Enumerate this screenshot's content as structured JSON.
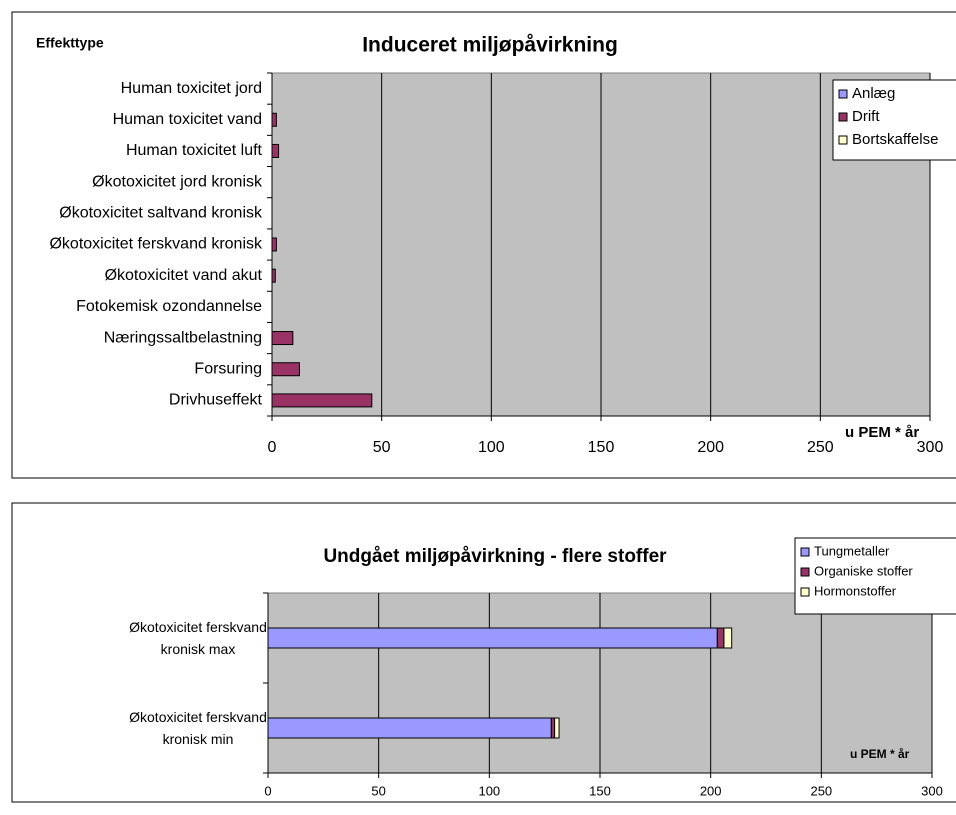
{
  "chart_data": [
    {
      "type": "stacked-bar",
      "orientation": "horizontal",
      "title": "Induceret miljøpåvirkning",
      "category_axis_label": "Effekttype",
      "annotation": "u PEM * år",
      "categories": [
        "Human toxicitet jord",
        "Human toxicitet vand",
        "Human toxicitet luft",
        "Økotoxicitet jord kronisk",
        "Økotoxicitet saltvand kronisk",
        "Økotoxicitet ferskvand kronisk",
        "Økotoxicitet vand akut",
        "Fotokemisk ozondannelse",
        "Næringssaltbelastning",
        "Forsuring",
        "Drivhuseffekt"
      ],
      "series": [
        {
          "name": "Anlæg",
          "color": "#9999ff",
          "values": [
            0,
            0,
            0,
            0,
            0,
            0,
            0,
            0,
            0,
            0,
            0
          ]
        },
        {
          "name": "Drift",
          "color": "#993366",
          "values": [
            0,
            2,
            3,
            0,
            0,
            2,
            1.5,
            0,
            9.5,
            12.5,
            45.5
          ]
        },
        {
          "name": "Bortskaffelse",
          "color": "#ffffcc",
          "values": [
            0,
            0,
            0,
            0,
            0,
            0,
            0,
            0,
            0,
            0,
            0
          ]
        }
      ],
      "xlim": [
        0,
        300
      ],
      "xticks": [
        0,
        50,
        100,
        150,
        200,
        250,
        300
      ],
      "grid": true,
      "legend": "top-right"
    },
    {
      "type": "stacked-bar",
      "orientation": "horizontal",
      "title": "Undgået miljøpåvirkning - flere stoffer",
      "annotation": "u PEM * år",
      "categories": [
        "Økotoxicitet ferskvand kronisk max",
        "Økotoxicitet ferskvand kronisk min"
      ],
      "series": [
        {
          "name": "Tungmetaller",
          "color": "#9999ff",
          "values": [
            203,
            128
          ]
        },
        {
          "name": "Organiske stoffer",
          "color": "#993366",
          "values": [
            3,
            1.5
          ]
        },
        {
          "name": "Hormonstoffer",
          "color": "#ffffcc",
          "values": [
            3.5,
            2
          ]
        }
      ],
      "xlim": [
        0,
        300
      ],
      "xticks": [
        0,
        50,
        100,
        150,
        200,
        250,
        300
      ],
      "grid": true,
      "legend": "top-right"
    }
  ]
}
